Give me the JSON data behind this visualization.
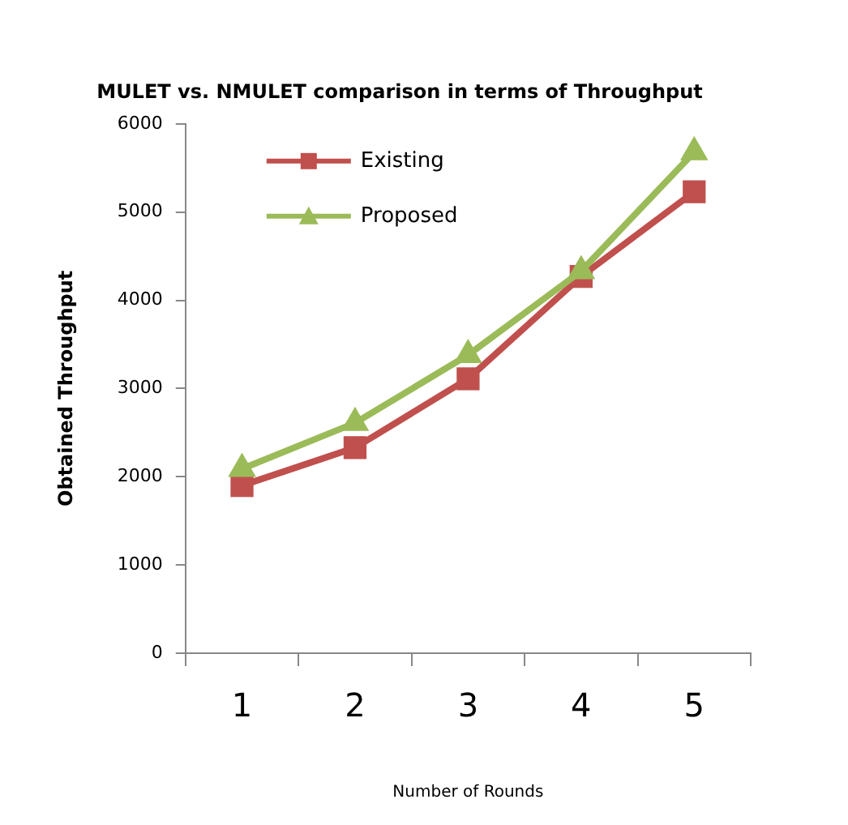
{
  "chart_data": {
    "type": "line",
    "title": "MULET vs. NMULET comparison in terms of Throughput",
    "xlabel": "Number of Rounds",
    "ylabel": "Obtained Throughput",
    "categories": [
      "1",
      "2",
      "3",
      "4",
      "5"
    ],
    "series": [
      {
        "name": "Existing",
        "color": "#c0504d",
        "values": [
          1900,
          2330,
          3110,
          4270,
          5230
        ],
        "marker": "square"
      },
      {
        "name": "Proposed",
        "color": "#9bbb59",
        "values": [
          2090,
          2610,
          3380,
          4330,
          5680
        ],
        "marker": "triangle"
      }
    ],
    "ylim": [
      0,
      6000
    ],
    "yticks": [
      0,
      1000,
      2000,
      3000,
      4000,
      5000,
      6000
    ],
    "grid": false,
    "legend": "top left",
    "line_style": "solid"
  }
}
